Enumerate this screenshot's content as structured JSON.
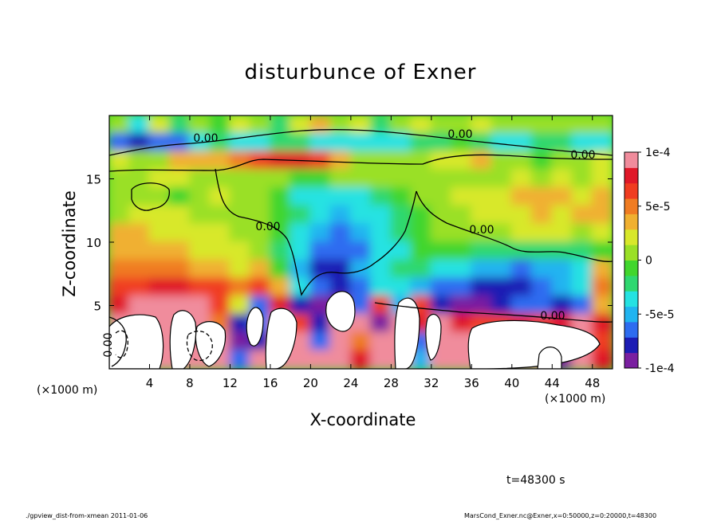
{
  "chart_data": {
    "type": "heatmap",
    "title": "disturbunce of Exner",
    "xlabel": "X-coordinate",
    "ylabel": "Z-coordinate",
    "x_unit_left": "(×1000 m)",
    "x_unit_right": "(×1000 m)",
    "xlim": [
      0,
      50
    ],
    "ylim": [
      0,
      20
    ],
    "x_ticks": [
      4,
      8,
      12,
      16,
      20,
      24,
      28,
      32,
      36,
      40,
      44,
      48
    ],
    "y_ticks": [
      5,
      10,
      15
    ],
    "colorbar": {
      "range": [
        -0.0001,
        0.0001
      ],
      "tick_values": [
        0.0001,
        5e-05,
        0,
        -5e-05,
        -0.0001
      ],
      "tick_labels": [
        "1e-4",
        "5e-5",
        "0",
        "-5e-5",
        "-1e-4"
      ],
      "colors": [
        "#7a1fa0",
        "#1c1cb4",
        "#2e6cf0",
        "#21b4f0",
        "#25e2e2",
        "#2fd870",
        "#41d62d",
        "#9ae026",
        "#d8e82a",
        "#f0b030",
        "#f07c22",
        "#f03c20",
        "#e01828",
        "#f08c9c"
      ]
    },
    "contour_labels": [
      "0.00",
      "0.00",
      "0.00",
      "0.00",
      "0.00",
      "0.00",
      "0.00"
    ],
    "z_rows": [
      [
        0.0,
        -0.3,
        0.2,
        -0.2,
        0.1,
        -0.1,
        0.2,
        0.1,
        -0.2,
        0.2,
        0.3,
        0.1,
        0.2,
        -0.2,
        0.1,
        0.2,
        0.1,
        0.0,
        0.2,
        0.1,
        0.0,
        0.1,
        0.1,
        0.0,
        0.0
      ],
      [
        -0.7,
        -0.8,
        -0.7,
        -0.6,
        -0.4,
        -0.2,
        -0.3,
        -0.4,
        -0.2,
        -0.2,
        -0.3,
        -0.4,
        -0.4,
        -0.3,
        -0.3,
        -0.2,
        -0.2,
        -0.1,
        -0.2,
        -0.3,
        -0.3,
        -0.2,
        -0.2,
        -0.4,
        -0.3
      ],
      [
        0.2,
        0.1,
        0.1,
        0.3,
        0.3,
        0.4,
        0.5,
        0.7,
        0.8,
        0.8,
        0.6,
        0.3,
        0.1,
        0.0,
        0.0,
        0.1,
        0.2,
        0.2,
        0.3,
        0.1,
        0.0,
        -0.1,
        0.0,
        0.1,
        0.2
      ],
      [
        0.05,
        0.1,
        0.15,
        0.2,
        0.1,
        0.0,
        0.05,
        0.05,
        0.0,
        -0.05,
        -0.05,
        0.0,
        0.05,
        0.05,
        0.0,
        0.0,
        0.05,
        0.1,
        0.05,
        0.1,
        0.15,
        0.1,
        0.15,
        0.1,
        0.15
      ],
      [
        0.0,
        0.05,
        0.1,
        -0.02,
        0.0,
        0.15,
        0.05,
        0.0,
        -0.1,
        -0.3,
        -0.35,
        -0.3,
        -0.3,
        -0.2,
        -0.1,
        0.0,
        0.1,
        0.15,
        0.2,
        0.25,
        0.3,
        0.3,
        0.3,
        0.25,
        0.3
      ],
      [
        0.1,
        0.15,
        0.2,
        0.15,
        0.1,
        0.1,
        0.05,
        0.0,
        -0.05,
        -0.25,
        -0.4,
        -0.45,
        -0.4,
        -0.3,
        -0.2,
        -0.1,
        0.05,
        0.1,
        0.15,
        0.2,
        0.25,
        0.3,
        0.25,
        0.3,
        0.3
      ],
      [
        0.3,
        0.3,
        0.25,
        0.2,
        0.2,
        0.15,
        0.1,
        0.05,
        -0.1,
        -0.3,
        -0.5,
        -0.6,
        -0.55,
        -0.3,
        -0.2,
        -0.1,
        0.0,
        0.05,
        0.05,
        0.1,
        0.15,
        0.2,
        0.2,
        0.1,
        0.15
      ],
      [
        0.35,
        0.4,
        0.35,
        0.3,
        0.25,
        0.2,
        0.15,
        0.1,
        -0.15,
        -0.4,
        -0.6,
        -0.7,
        -0.6,
        -0.4,
        -0.3,
        -0.1,
        -0.05,
        -0.1,
        -0.15,
        -0.2,
        -0.2,
        -0.2,
        -0.15,
        -0.2,
        -0.1
      ],
      [
        0.45,
        0.5,
        0.5,
        0.45,
        0.35,
        0.3,
        0.25,
        0.3,
        -0.1,
        -0.55,
        -0.8,
        -0.75,
        -0.5,
        -0.35,
        -0.2,
        -0.25,
        -0.3,
        -0.4,
        -0.5,
        -0.55,
        -0.6,
        -0.55,
        -0.45,
        -0.3,
        0.3
      ],
      [
        0.6,
        0.7,
        0.75,
        0.8,
        0.7,
        0.6,
        0.5,
        0.6,
        0.3,
        -0.3,
        -0.7,
        -0.85,
        -0.6,
        -0.3,
        -0.4,
        -0.5,
        -0.6,
        -0.7,
        -0.8,
        -0.85,
        -0.8,
        -0.7,
        -0.55,
        -0.3,
        0.5
      ],
      [
        0.8,
        0.9,
        1.1,
        1.0,
        0.9,
        0.6,
        0.2,
        -0.6,
        0.8,
        -0.8,
        -0.9,
        -0.95,
        -0.6,
        0.6,
        -0.5,
        0.7,
        -0.8,
        -0.9,
        -0.9,
        -0.85,
        -0.7,
        -0.6,
        -0.8,
        -0.7,
        0.3
      ],
      [
        1.2,
        1.4,
        1.3,
        1.2,
        1.1,
        0.5,
        -0.8,
        -0.7,
        1.0,
        0.7,
        -0.8,
        1.3,
        0.9,
        -0.9,
        1.2,
        0.8,
        0.9,
        0.8,
        0.7,
        0.6,
        0.8,
        0.7,
        0.8,
        0.9,
        0.8
      ],
      [
        1.5,
        1.5,
        1.4,
        1.3,
        1.2,
        1.2,
        -0.9,
        -0.8,
        1.4,
        0.9,
        -0.7,
        1.4,
        0.5,
        1.3,
        1.2,
        -0.6,
        1.3,
        1.0,
        0.9,
        0.6,
        1.1,
        1.2,
        -0.8,
        1.0,
        0.7
      ],
      [
        1.5,
        1.6,
        1.5,
        1.4,
        1.4,
        1.3,
        -0.6,
        1.2,
        1.5,
        1.0,
        1.2,
        1.5,
        0.8,
        1.4,
        1.3,
        -0.5,
        1.4,
        1.2,
        1.3,
        1.4,
        1.5,
        1.6,
        -0.9,
        1.2,
        0.8
      ]
    ]
  }
}
